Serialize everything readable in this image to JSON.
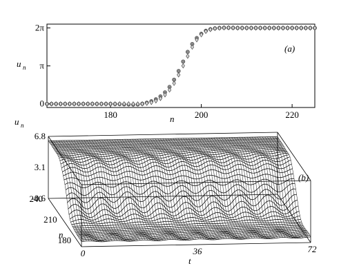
{
  "chart_data": [
    {
      "panel": "a",
      "type": "scatter",
      "panel_label": "(a)",
      "xlabel": "n",
      "ylabel": "u",
      "ylabel_sub": "n",
      "xlim": [
        166,
        225
      ],
      "ylim": [
        -0.3,
        6.6
      ],
      "x_ticks": [
        {
          "value": 180,
          "label": "180"
        },
        {
          "value": 200,
          "label": "200"
        },
        {
          "value": 220,
          "label": "220"
        }
      ],
      "y_ticks": [
        {
          "value": 0,
          "label": "0"
        },
        {
          "value": 3.1416,
          "label": "π"
        },
        {
          "value": 6.2832,
          "label": "2π"
        }
      ],
      "series": [
        {
          "marker": "circle",
          "x": [
            166,
            167,
            168,
            169,
            170,
            171,
            172,
            173,
            174,
            175,
            176,
            177,
            178,
            179,
            180,
            181,
            182,
            183,
            184,
            185,
            186,
            187,
            188,
            189,
            190,
            191,
            192,
            193,
            194,
            195,
            196,
            197,
            198,
            199,
            200,
            201,
            202,
            203,
            204,
            205,
            206,
            207,
            208,
            209,
            210,
            211,
            212,
            213,
            214,
            215,
            216,
            217,
            218,
            219,
            220,
            221,
            222,
            223,
            224,
            225
          ],
          "y": [
            0,
            0,
            0,
            0,
            0,
            0,
            0,
            0,
            0,
            0,
            0,
            0,
            0,
            0,
            0,
            -0.01,
            -0.02,
            -0.04,
            -0.05,
            -0.06,
            -0.05,
            0.01,
            0.1,
            0.22,
            0.38,
            0.62,
            0.95,
            1.4,
            2.0,
            2.72,
            3.5,
            4.3,
            4.95,
            5.45,
            5.8,
            6.05,
            6.18,
            6.25,
            6.28,
            6.3,
            6.3,
            6.29,
            6.28,
            6.28,
            6.28,
            6.28,
            6.28,
            6.28,
            6.28,
            6.28,
            6.28,
            6.28,
            6.28,
            6.28,
            6.28,
            6.28,
            6.28,
            6.28,
            6.28,
            6.28
          ]
        },
        {
          "marker": "diamond",
          "x": [
            166,
            167,
            168,
            169,
            170,
            171,
            172,
            173,
            174,
            175,
            176,
            177,
            178,
            179,
            180,
            181,
            182,
            183,
            184,
            185,
            186,
            187,
            188,
            189,
            190,
            191,
            192,
            193,
            194,
            195,
            196,
            197,
            198,
            199,
            200,
            201,
            202,
            203,
            204,
            205,
            206,
            207,
            208,
            209,
            210,
            211,
            212,
            213,
            214,
            215,
            216,
            217,
            218,
            219,
            220,
            221,
            222,
            223,
            224,
            225
          ],
          "y": [
            0,
            0,
            0,
            0,
            0,
            0,
            0,
            0,
            0,
            0,
            0,
            0,
            0,
            0,
            0,
            0,
            0,
            0,
            0,
            -0.01,
            -0.01,
            0.0,
            0.05,
            0.12,
            0.25,
            0.45,
            0.75,
            1.15,
            1.7,
            2.4,
            3.15,
            3.95,
            4.7,
            5.3,
            5.72,
            6.0,
            6.15,
            6.24,
            6.27,
            6.29,
            6.3,
            6.29,
            6.28,
            6.28,
            6.28,
            6.28,
            6.28,
            6.28,
            6.28,
            6.28,
            6.28,
            6.28,
            6.28,
            6.28,
            6.28,
            6.28,
            6.28,
            6.28,
            6.28,
            6.28
          ]
        }
      ]
    },
    {
      "panel": "b",
      "type": "surface",
      "panel_label": "(b)",
      "xlabel": "t",
      "ylabel": "n",
      "zlabel": "u",
      "zlabel_sub": "n",
      "t_ticks": [
        {
          "value": 0,
          "label": "0"
        },
        {
          "value": 36,
          "label": "36"
        },
        {
          "value": 72,
          "label": "72"
        }
      ],
      "n_ticks": [
        {
          "value": 180,
          "label": "180"
        },
        {
          "value": 210,
          "label": "210"
        },
        {
          "value": 240,
          "label": "240"
        }
      ],
      "z_ticks": [
        {
          "value": -0.6,
          "label": "-0.6"
        },
        {
          "value": 3.1,
          "label": "3.1"
        },
        {
          "value": 6.8,
          "label": "6.8"
        }
      ],
      "tlim": [
        0,
        72
      ],
      "nlim": [
        170,
        240
      ],
      "zlim": [
        -0.6,
        6.8
      ]
    }
  ]
}
